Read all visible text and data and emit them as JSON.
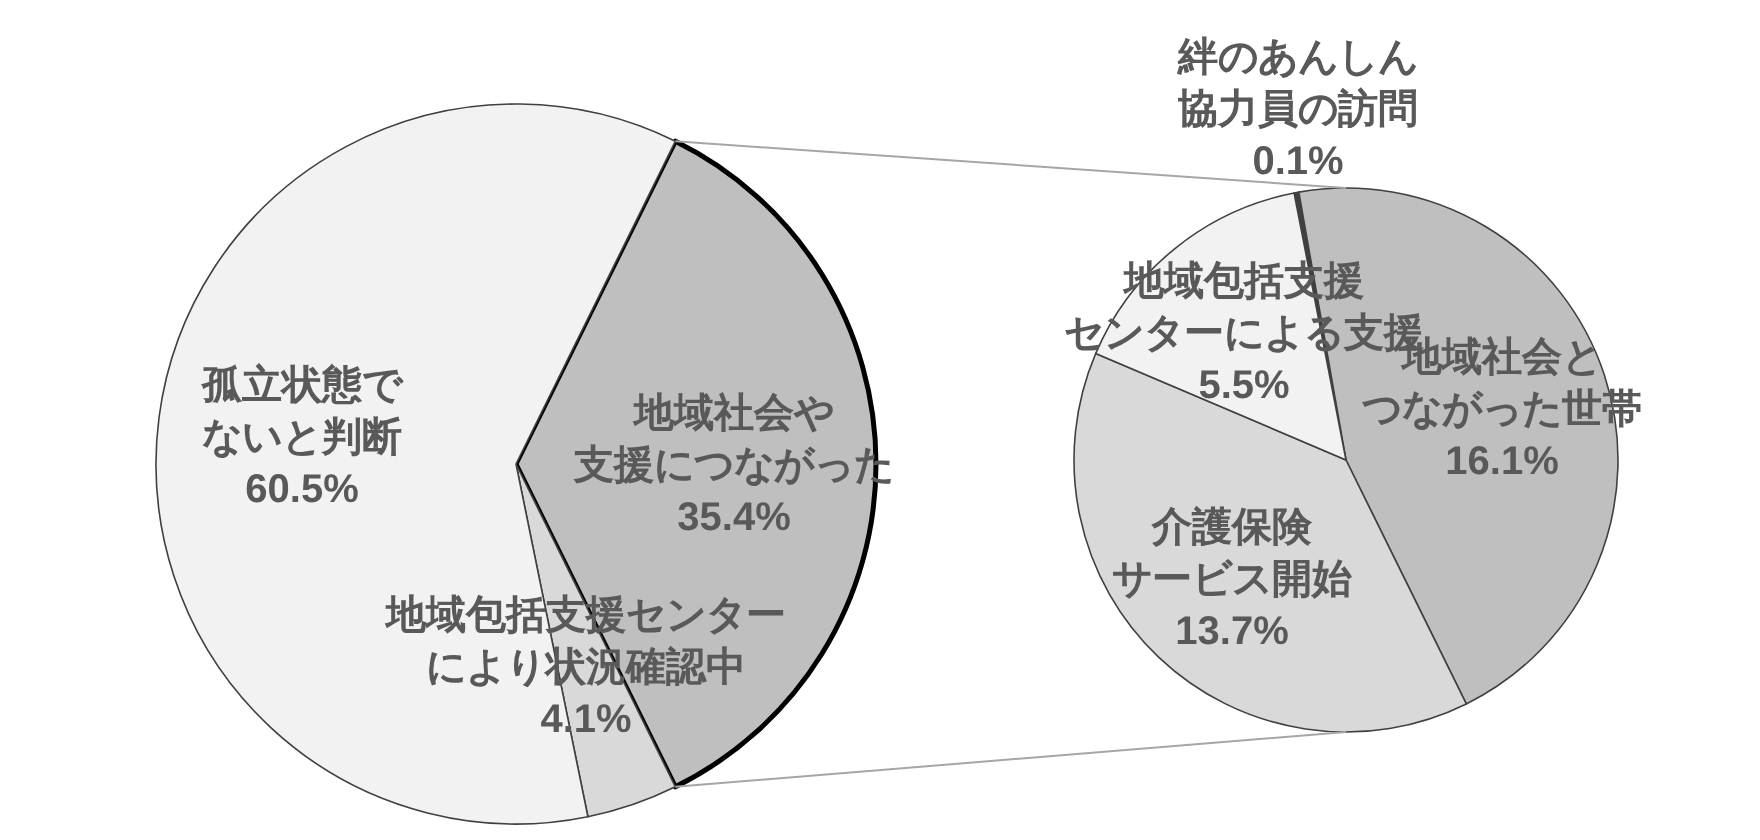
{
  "chart_data": [
    {
      "type": "pie",
      "categories": [
        "地域社会や支援につながった",
        "地域包括支援センターにより状況確認中",
        "孤立状態でないと判断"
      ],
      "values": [
        35.4,
        4.1,
        60.5
      ],
      "colors": [
        "#bfbfbf",
        "#d9d9d9",
        "#f2f2f2"
      ],
      "value_labels": [
        "35.4%",
        "4.1%",
        "60.5%"
      ]
    },
    {
      "type": "pie",
      "categories": [
        "絆のあんしん協力員の訪問",
        "地域社会とつながった世帯",
        "介護保険サービス開始",
        "地域包括支援センターによる支援"
      ],
      "values": [
        0.1,
        16.1,
        13.7,
        5.5
      ],
      "colors": [
        "#404040",
        "#bfbfbf",
        "#d9d9d9",
        "#f2f2f2"
      ],
      "value_labels": [
        "0.1%",
        "16.1%",
        "13.7%",
        "5.5%"
      ]
    }
  ]
}
